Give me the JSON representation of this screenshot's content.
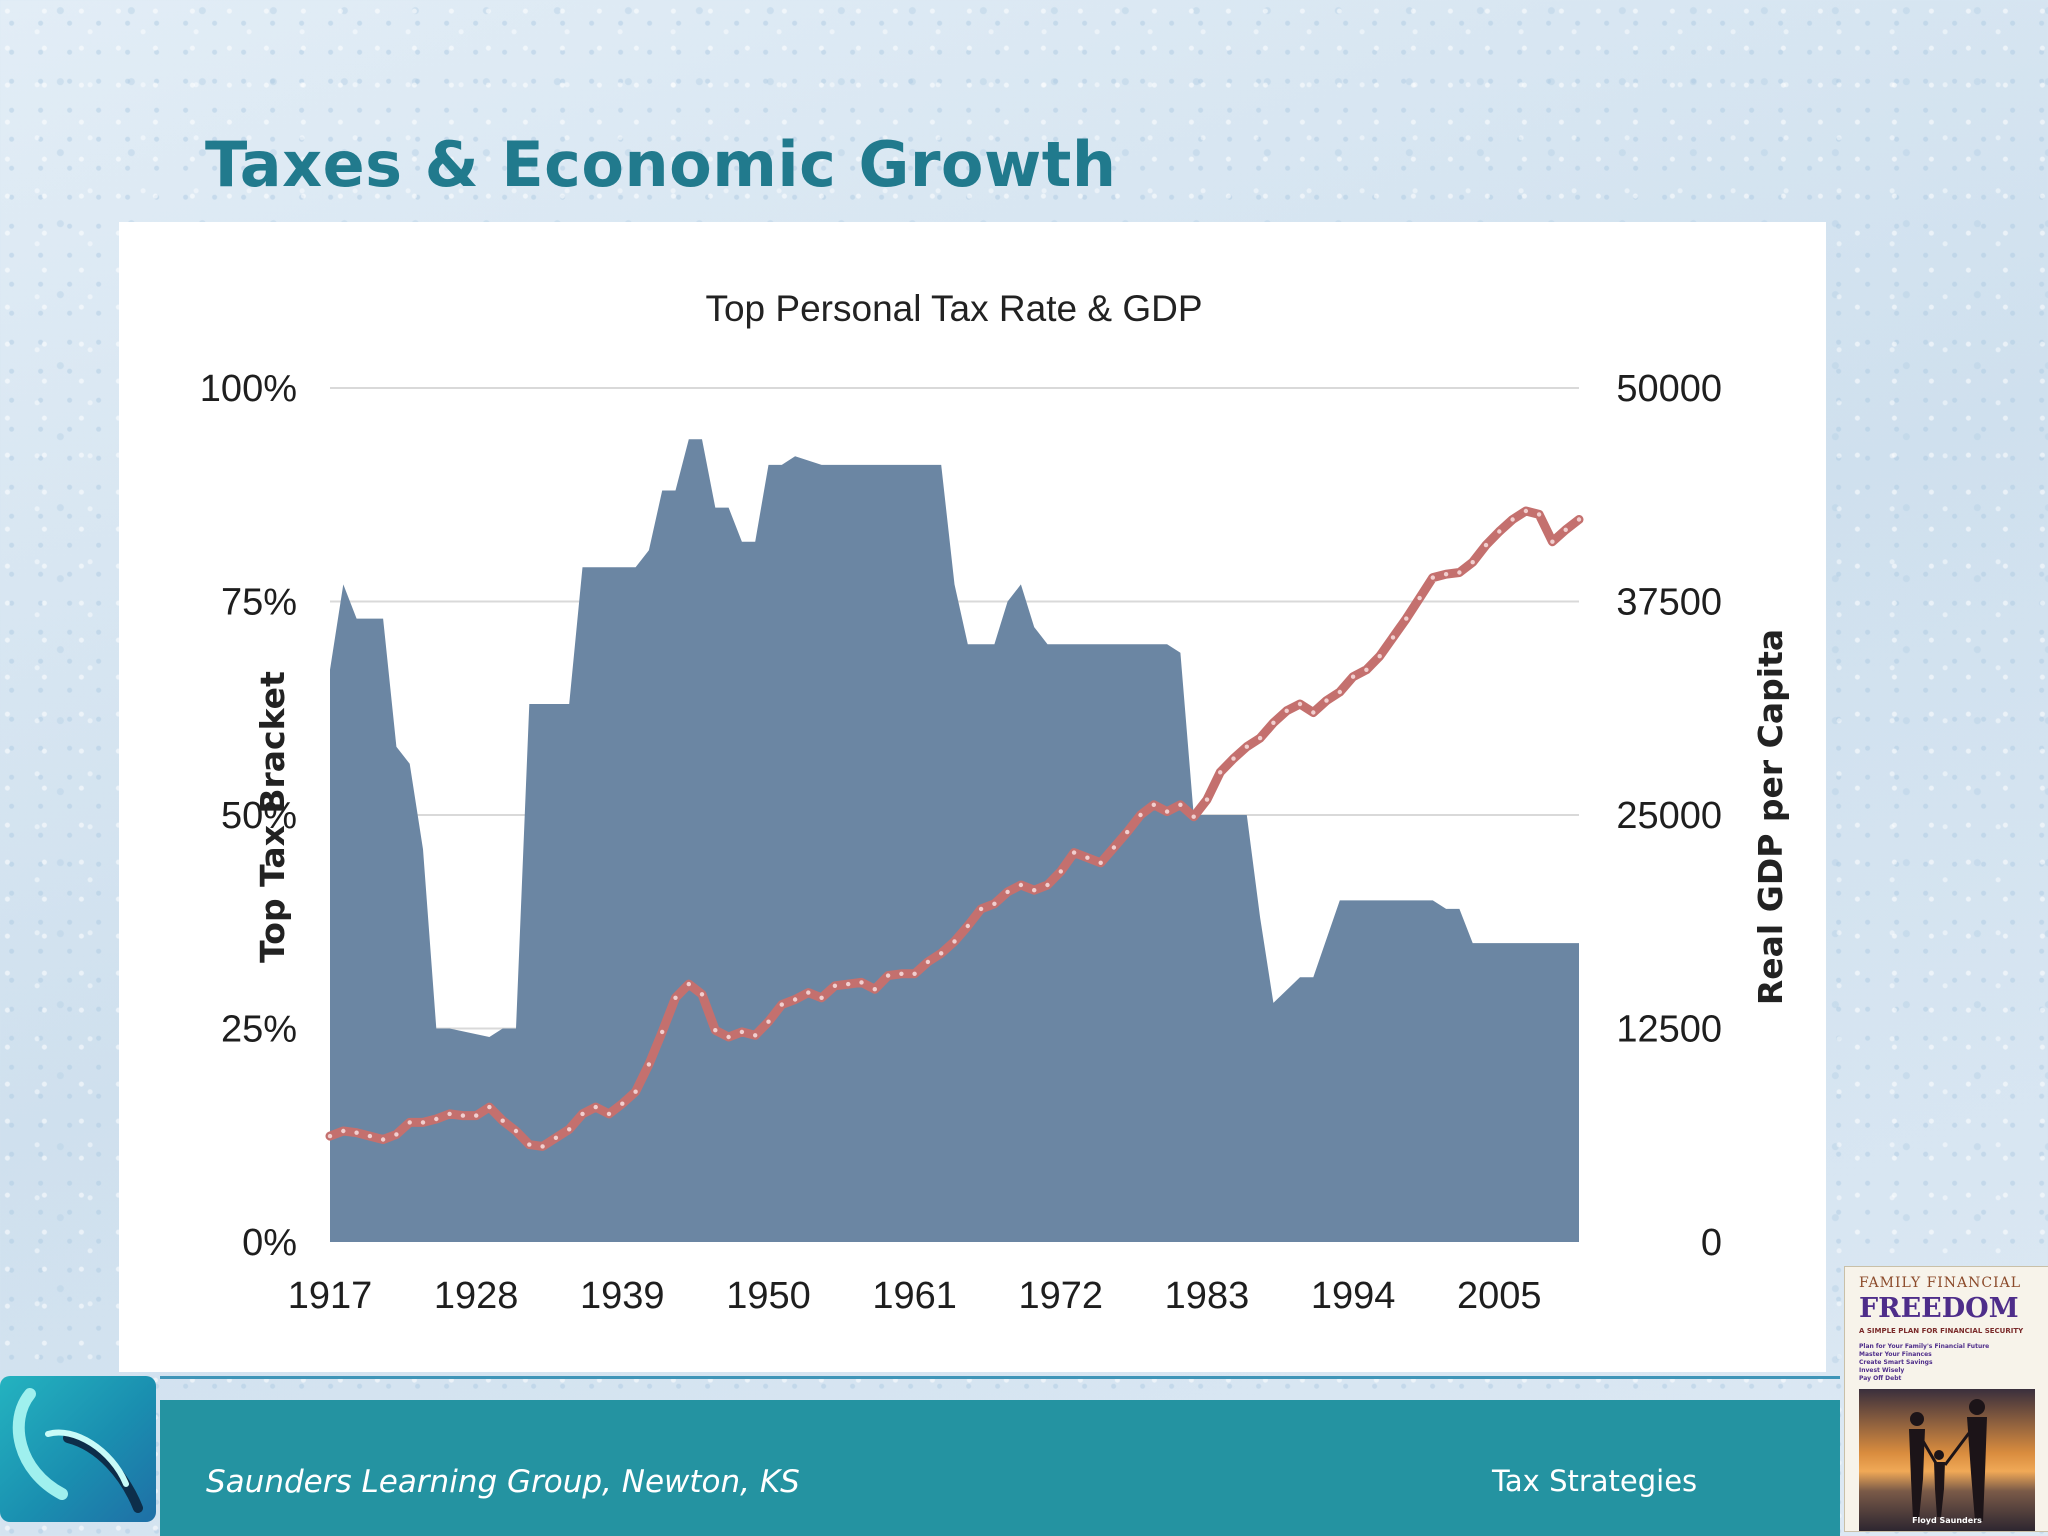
{
  "slide": {
    "title": "Taxes & Economic Growth"
  },
  "footer": {
    "organization": "Saunders Learning Group, Newton, KS",
    "topic": "Tax Strategies"
  },
  "book": {
    "top_line": "FAMILY FINANCIAL",
    "title": "FREEDOM",
    "subtitle": "A SIMPLE PLAN FOR FINANCIAL SECURITY",
    "bullets": [
      "Plan for Your Family's Financial Future",
      "Master Your Finances",
      "Create Smart Savings",
      "Invest Wisely",
      "Pay Off Debt"
    ],
    "author": "Floyd Saunders"
  },
  "colors": {
    "title": "#217a8d",
    "tax_area": "#6b86a3",
    "gdp_line": "#c4706e",
    "footer_bar": "#2493a1"
  },
  "chart_data": {
    "type": "area",
    "title": "Top Personal Tax Rate & GDP",
    "ylabel_left": "Top Tax Bracket",
    "ylabel_right": "Real GDP per Capita",
    "x_ticks": [
      "1917",
      "1928",
      "1939",
      "1950",
      "1961",
      "1972",
      "1983",
      "1994",
      "2005"
    ],
    "y_left_ticks": [
      "0%",
      "25%",
      "50%",
      "75%",
      "100%"
    ],
    "y_right_ticks": [
      "0",
      "12500",
      "25000",
      "37500",
      "50000"
    ],
    "xlim": [
      1917,
      2011
    ],
    "ylim_left": [
      0,
      100
    ],
    "ylim_right": [
      0,
      50000
    ],
    "grid": true,
    "series": [
      {
        "name": "Top Tax Bracket",
        "kind": "area",
        "axis": "left",
        "x": [
          1917,
          1918,
          1919,
          1921,
          1922,
          1923,
          1924,
          1925,
          1926,
          1929,
          1930,
          1931,
          1932,
          1935,
          1936,
          1940,
          1941,
          1942,
          1943,
          1944,
          1945,
          1946,
          1947,
          1948,
          1949,
          1950,
          1951,
          1952,
          1954,
          1963,
          1964,
          1965,
          1967,
          1968,
          1969,
          1970,
          1971,
          1980,
          1981,
          1982,
          1986,
          1987,
          1988,
          1990,
          1991,
          1993,
          2000,
          2001,
          2002,
          2003,
          2010,
          2011
        ],
        "y": [
          67,
          77,
          73,
          73,
          58,
          56,
          46,
          25,
          25,
          24,
          25,
          25,
          63,
          63,
          79,
          79,
          81,
          88,
          88,
          94,
          94,
          86,
          86,
          82,
          82,
          91,
          91,
          92,
          91,
          91,
          77,
          70,
          70,
          75,
          77,
          72,
          70,
          70,
          69,
          50,
          50,
          38,
          28,
          31,
          31,
          40,
          40,
          39,
          39,
          35,
          35,
          35
        ]
      },
      {
        "name": "Real GDP per Capita",
        "kind": "line",
        "axis": "right",
        "x": [
          1917,
          1918,
          1919,
          1920,
          1921,
          1922,
          1923,
          1924,
          1925,
          1926,
          1927,
          1928,
          1929,
          1930,
          1931,
          1932,
          1933,
          1934,
          1935,
          1936,
          1937,
          1938,
          1939,
          1940,
          1941,
          1942,
          1943,
          1944,
          1945,
          1946,
          1947,
          1948,
          1949,
          1950,
          1951,
          1952,
          1953,
          1954,
          1955,
          1956,
          1957,
          1958,
          1959,
          1960,
          1961,
          1962,
          1963,
          1964,
          1965,
          1966,
          1967,
          1968,
          1969,
          1970,
          1971,
          1972,
          1973,
          1974,
          1975,
          1976,
          1977,
          1978,
          1979,
          1980,
          1981,
          1982,
          1983,
          1984,
          1985,
          1986,
          1987,
          1988,
          1989,
          1990,
          1991,
          1992,
          1993,
          1994,
          1995,
          1996,
          1997,
          1998,
          1999,
          2000,
          2001,
          2002,
          2003,
          2004,
          2005,
          2006,
          2007,
          2008,
          2009,
          2010,
          2011
        ],
        "y": [
          6200,
          6500,
          6400,
          6200,
          6000,
          6300,
          7000,
          7000,
          7200,
          7500,
          7400,
          7400,
          7900,
          7100,
          6500,
          5700,
          5600,
          6100,
          6600,
          7500,
          7900,
          7500,
          8100,
          8800,
          10400,
          12300,
          14300,
          15100,
          14500,
          12400,
          12000,
          12300,
          12100,
          12900,
          13900,
          14200,
          14600,
          14300,
          15000,
          15100,
          15200,
          14800,
          15600,
          15700,
          15700,
          16400,
          16900,
          17600,
          18500,
          19500,
          19800,
          20500,
          20900,
          20600,
          20900,
          21700,
          22800,
          22500,
          22200,
          23100,
          24000,
          25000,
          25600,
          25200,
          25600,
          24900,
          25900,
          27500,
          28300,
          29000,
          29500,
          30400,
          31100,
          31500,
          31000,
          31700,
          32200,
          33100,
          33500,
          34300,
          35400,
          36500,
          37700,
          38900,
          39100,
          39200,
          39800,
          40800,
          41600,
          42300,
          42800,
          42600,
          41000,
          41700,
          42300
        ]
      }
    ]
  }
}
